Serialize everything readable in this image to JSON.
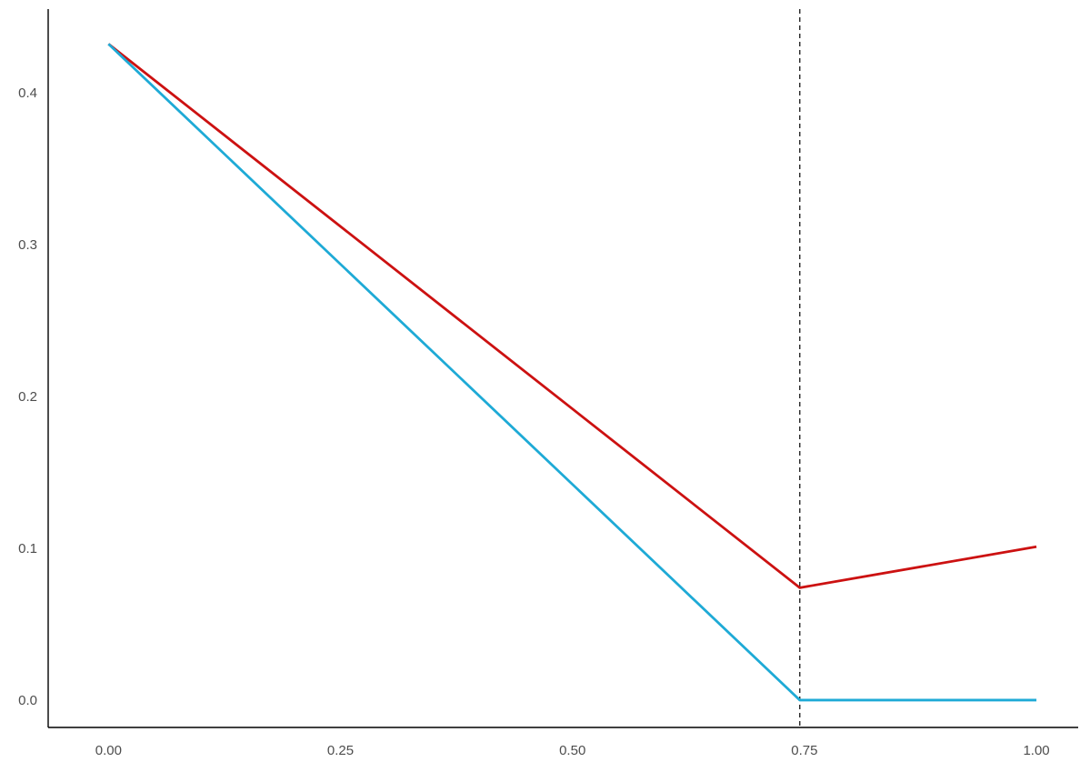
{
  "chart_data": {
    "type": "line",
    "title": "",
    "xlabel": "",
    "ylabel": "",
    "xlim": [
      -0.065,
      1.045
    ],
    "ylim": [
      -0.018,
      0.455
    ],
    "x_ticks": [
      0.0,
      0.25,
      0.5,
      0.75,
      1.0
    ],
    "x_tick_labels": [
      "0.00",
      "0.25",
      "0.50",
      "0.75",
      "1.00"
    ],
    "y_ticks": [
      0.0,
      0.1,
      0.2,
      0.3,
      0.4
    ],
    "y_tick_labels": [
      "0.0",
      "0.1",
      "0.2",
      "0.3",
      "0.4"
    ],
    "grid": false,
    "legend": "none",
    "series": [
      {
        "color": "#cc1111",
        "points": [
          {
            "x": 0.0,
            "y": 0.432
          },
          {
            "x": 0.745,
            "y": 0.074
          },
          {
            "x": 1.0,
            "y": 0.101
          }
        ]
      },
      {
        "color": "#1eaad6",
        "points": [
          {
            "x": 0.0,
            "y": 0.432
          },
          {
            "x": 0.745,
            "y": 0.0
          },
          {
            "x": 1.0,
            "y": 0.0
          }
        ]
      }
    ],
    "reference_lines": [
      {
        "orientation": "vertical",
        "x": 0.745,
        "style": "dashed",
        "color": "#000000"
      }
    ]
  }
}
